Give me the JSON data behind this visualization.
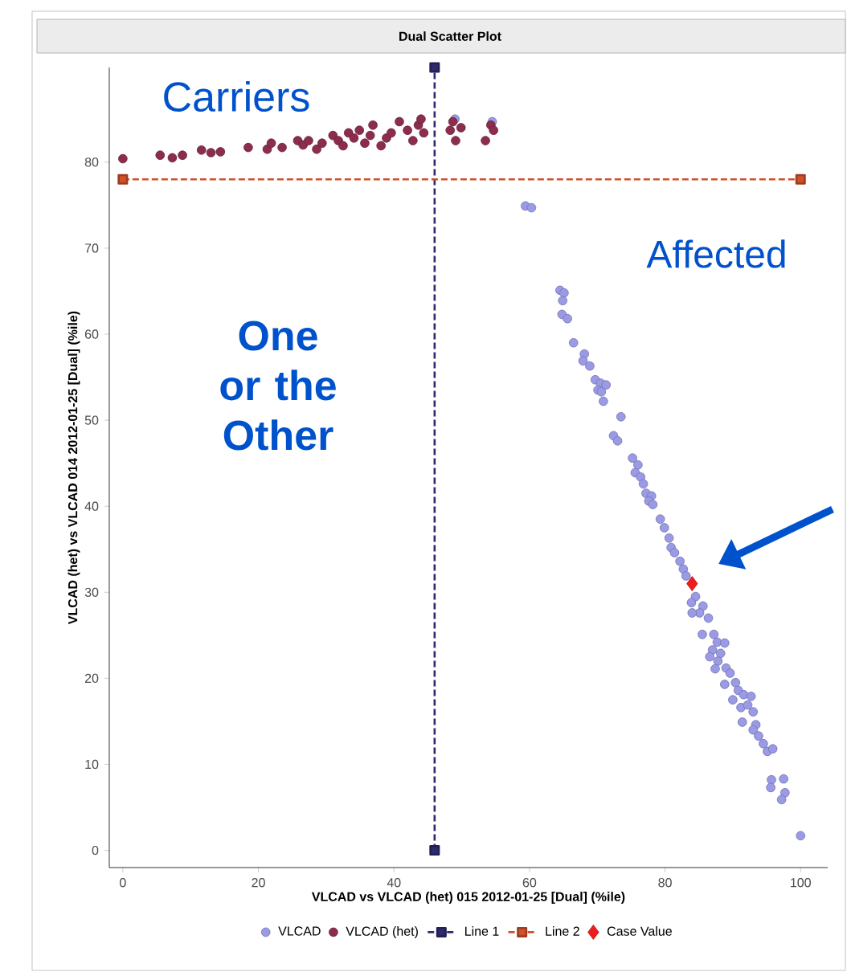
{
  "chart_data": {
    "type": "scatter",
    "title": "Dual Scatter Plot",
    "xlabel": "VLCAD vs VLCAD (het) 015 2012-01-25 [Dual] (%ile)",
    "ylabel": "VLCAD (het) vs VLCAD 014 2012-01-25 [Dual] (%ile)",
    "xlim": [
      -2,
      104
    ],
    "ylim": [
      -2,
      91
    ],
    "xticks": [
      0,
      20,
      40,
      60,
      80,
      100
    ],
    "yticks": [
      0,
      10,
      20,
      30,
      40,
      50,
      60,
      70,
      80
    ],
    "grid": false,
    "legend": "bottom",
    "annotations": [
      "Carriers",
      "Affected",
      "One or the Other"
    ],
    "series": [
      {
        "name": "VLCAD",
        "marker": "circle",
        "color": "#9a9ae6",
        "x": [
          49.0,
          54.5,
          59.4,
          60.3,
          64.5,
          65.1,
          64.9,
          64.8,
          65.6,
          66.5,
          68.1,
          67.9,
          68.9,
          69.7,
          70.5,
          71.3,
          70.1,
          70.6,
          70.9,
          73.5,
          72.4,
          73.0,
          75.2,
          76.0,
          75.6,
          76.4,
          76.8,
          77.2,
          78.0,
          77.6,
          78.2,
          79.3,
          79.9,
          80.6,
          80.9,
          81.4,
          82.2,
          82.7,
          83.1,
          84.5,
          83.9,
          85.6,
          85.1,
          86.4,
          84.0,
          85.5,
          87.2,
          87.7,
          88.8,
          87.0,
          88.2,
          86.6,
          87.8,
          87.4,
          89.0,
          89.6,
          88.8,
          90.4,
          90.8,
          90.0,
          91.6,
          92.7,
          91.2,
          92.2,
          93.0,
          91.4,
          93.4,
          93.0,
          93.8,
          94.5,
          95.1,
          95.9,
          95.7,
          97.5,
          95.6,
          97.7,
          97.2,
          100.0
        ],
        "values": [
          85.0,
          84.7,
          74.9,
          74.7,
          65.1,
          64.8,
          63.9,
          62.3,
          61.8,
          59.0,
          57.7,
          56.9,
          56.3,
          54.7,
          54.3,
          54.1,
          53.5,
          53.3,
          52.2,
          50.4,
          48.2,
          47.6,
          45.6,
          44.8,
          43.9,
          43.4,
          42.6,
          41.5,
          41.2,
          40.6,
          40.2,
          38.5,
          37.5,
          36.3,
          35.2,
          34.6,
          33.6,
          32.7,
          31.9,
          29.5,
          28.8,
          28.4,
          27.6,
          27.0,
          27.6,
          25.1,
          25.1,
          24.2,
          24.1,
          23.3,
          22.9,
          22.5,
          22.0,
          21.1,
          21.2,
          20.6,
          19.3,
          19.5,
          18.6,
          17.5,
          18.1,
          17.9,
          16.6,
          16.9,
          16.1,
          14.9,
          14.6,
          14.0,
          13.3,
          12.4,
          11.5,
          11.8,
          8.2,
          8.3,
          7.3,
          6.7,
          5.9,
          1.7
        ]
      },
      {
        "name": "VLCAD (het)",
        "marker": "circle",
        "color": "#8c2d4e",
        "x": [
          0.0,
          5.5,
          7.3,
          8.8,
          11.6,
          13.0,
          14.4,
          18.5,
          21.3,
          21.9,
          23.5,
          25.8,
          26.6,
          27.4,
          28.6,
          29.4,
          31.0,
          31.8,
          32.5,
          33.3,
          34.1,
          34.9,
          35.7,
          36.5,
          36.9,
          38.1,
          38.9,
          39.6,
          40.8,
          42.0,
          42.8,
          43.6,
          44.0,
          44.4,
          48.3,
          48.7,
          49.1,
          49.9,
          53.5,
          54.3,
          54.7
        ],
        "values": [
          80.4,
          80.8,
          80.5,
          80.8,
          81.4,
          81.1,
          81.2,
          81.7,
          81.5,
          82.2,
          81.7,
          82.5,
          82.0,
          82.5,
          81.5,
          82.2,
          83.1,
          82.5,
          81.9,
          83.4,
          82.8,
          83.7,
          82.2,
          83.1,
          84.3,
          81.9,
          82.8,
          83.4,
          84.7,
          83.7,
          82.5,
          84.3,
          85.0,
          83.4,
          83.7,
          84.7,
          82.5,
          84.0,
          82.5,
          84.3,
          83.7
        ]
      },
      {
        "name": "Line 1",
        "type": "line",
        "marker": "square",
        "line_style": "dashed",
        "color": "#2e2a6e",
        "x": [
          46,
          46
        ],
        "values": [
          0,
          91
        ]
      },
      {
        "name": "Line 2",
        "type": "line",
        "marker": "square",
        "line_style": "dashed",
        "color": "#d0502a",
        "x": [
          0,
          100
        ],
        "values": [
          78,
          78
        ]
      },
      {
        "name": "Case Value",
        "marker": "diamond",
        "color": "#ee1c1c",
        "x": [
          84.0
        ],
        "values": [
          31.0
        ]
      }
    ]
  }
}
